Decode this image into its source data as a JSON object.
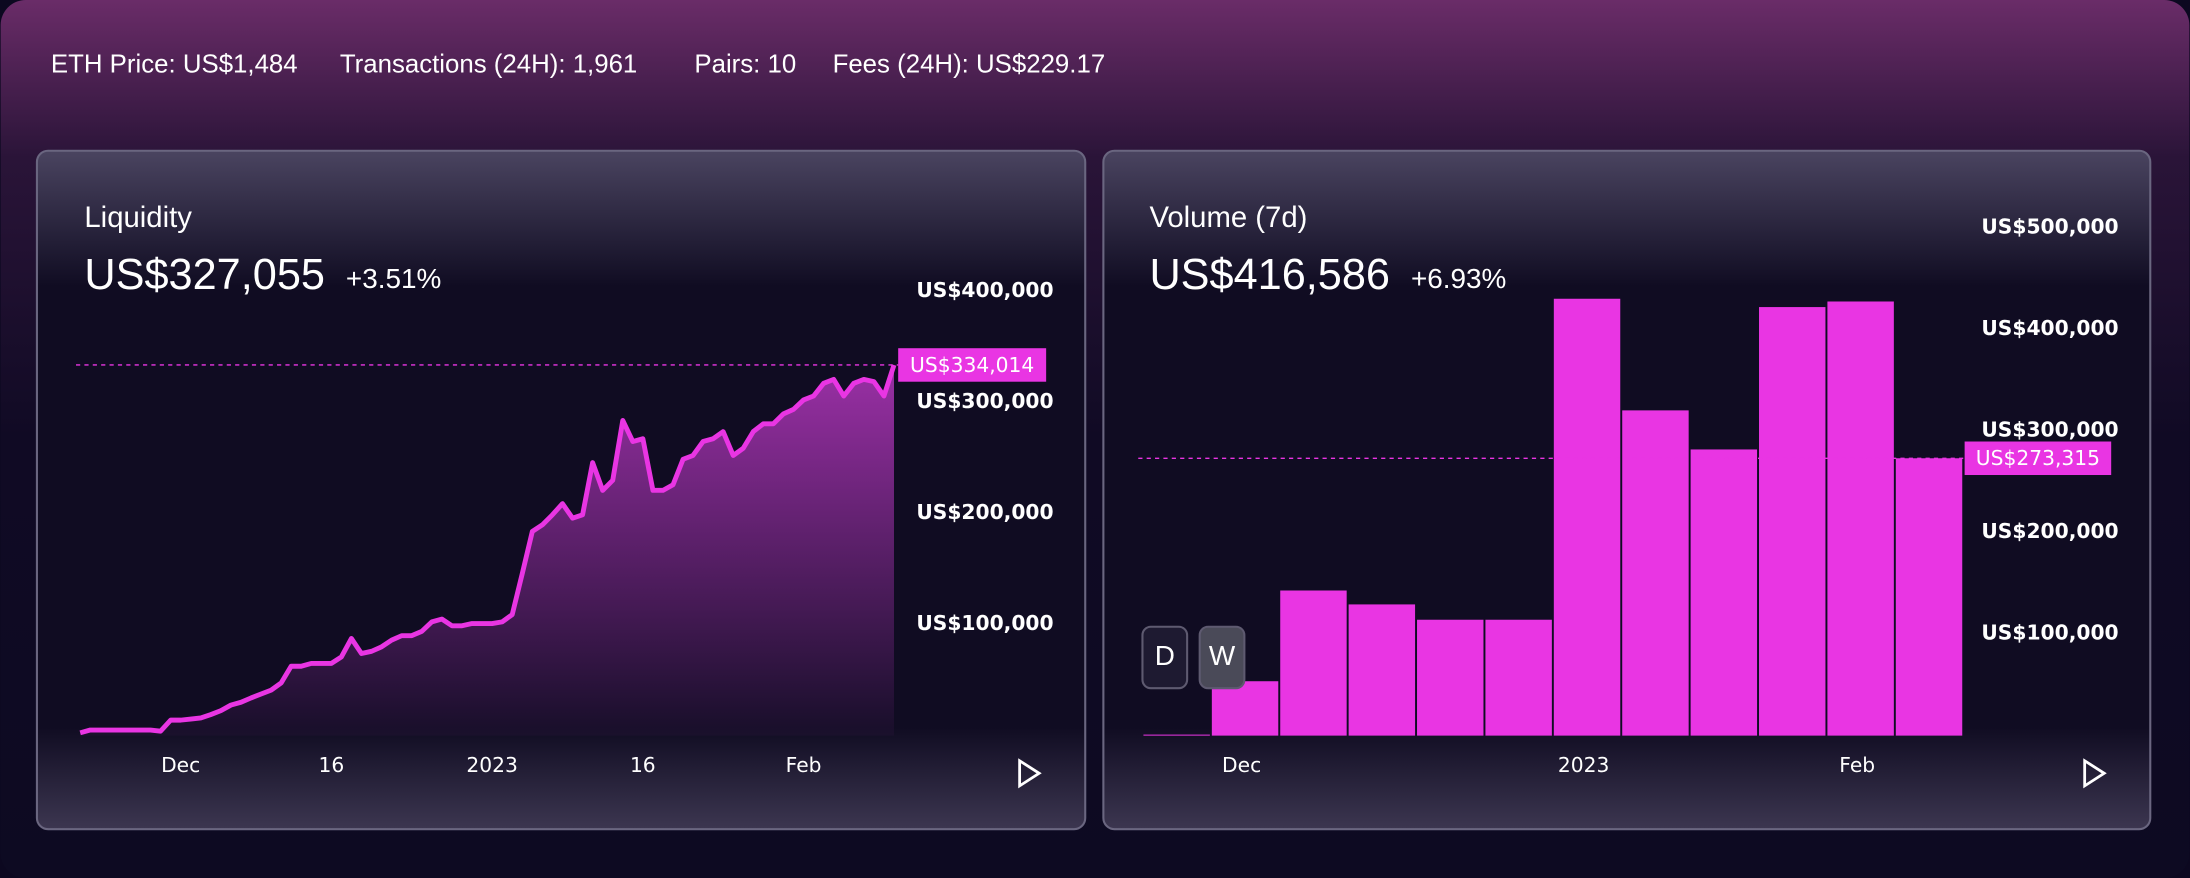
{
  "header": {
    "stats": [
      "ETH Price: US$1,484",
      "Transactions (24H): 1,961",
      "Pairs: 10",
      "Fees (24H): US$229.17"
    ]
  },
  "controls": [
    "D",
    "W"
  ],
  "chart_data": [
    {
      "type": "area",
      "title": "Liquidity",
      "headline": "US$327,055",
      "change": "+3.51%",
      "color": "#e935e3",
      "x": [
        0,
        1,
        2,
        3,
        4,
        5,
        6,
        7,
        8,
        9,
        10,
        11,
        12,
        13,
        14,
        15,
        16,
        17,
        18,
        19,
        20,
        21,
        22,
        23,
        24,
        25,
        26,
        27,
        28,
        29,
        30,
        31,
        32,
        33,
        34,
        35,
        36,
        37,
        38,
        39,
        40,
        41,
        42,
        43,
        44,
        45,
        46,
        47,
        48,
        49,
        50,
        51,
        52,
        53,
        54,
        55,
        56,
        57,
        58,
        59,
        60,
        61,
        62,
        63,
        64,
        65,
        66,
        67,
        68,
        69,
        70,
        71,
        72,
        73,
        74,
        75,
        76,
        77,
        78,
        79,
        80,
        81
      ],
      "values": [
        2500,
        5000,
        5000,
        5000,
        5000,
        5000,
        5000,
        5000,
        4000,
        14000,
        14000,
        15000,
        16000,
        19000,
        22500,
        27500,
        30000,
        34000,
        37500,
        41000,
        47500,
        62500,
        62500,
        65000,
        65000,
        65000,
        71000,
        87500,
        74000,
        76000,
        80000,
        86000,
        90000,
        90000,
        94000,
        102500,
        105000,
        99000,
        99000,
        101000,
        101000,
        101000,
        102500,
        109000,
        146000,
        184000,
        190000,
        199000,
        209000,
        196000,
        199000,
        246000,
        221000,
        230000,
        284000,
        265000,
        267500,
        221000,
        221000,
        226000,
        249000,
        252500,
        265000,
        267500,
        274000,
        252500,
        259000,
        274000,
        281000,
        281000,
        290000,
        294000,
        302500,
        306000,
        317500,
        321000,
        306000,
        317500,
        321000,
        319000,
        306000,
        334014
      ],
      "xlim": [
        0,
        81
      ],
      "xticks": [
        {
          "value": 10,
          "label": "Dec"
        },
        {
          "value": 25,
          "label": "16"
        },
        {
          "value": 41,
          "label": "2023"
        },
        {
          "value": 56,
          "label": "16"
        },
        {
          "value": 72,
          "label": "Feb"
        }
      ],
      "ylim": [
        0,
        400000
      ],
      "yticks": [
        {
          "value": 100000,
          "label": "US$100,000"
        },
        {
          "value": 200000,
          "label": "US$200,000"
        },
        {
          "value": 300000,
          "label": "US$300,000"
        },
        {
          "value": 400000,
          "label": "US$400,000"
        }
      ],
      "marker": {
        "value": 334014,
        "label": "US$334,014"
      }
    },
    {
      "type": "bar",
      "title": "Volume (7d)",
      "headline": "US$416,586",
      "change": "+6.93%",
      "color": "#e935e3",
      "x": [
        0,
        1,
        2,
        3,
        4,
        5,
        6,
        7,
        8,
        9,
        10,
        11
      ],
      "values": [
        1000,
        53600,
        143000,
        129300,
        114200,
        114200,
        430500,
        320500,
        282000,
        422300,
        427800,
        273315
      ],
      "xlim": [
        0,
        12
      ],
      "xticks": [
        {
          "value": 1.45,
          "label": "Dec"
        },
        {
          "value": 6.45,
          "label": "2023"
        },
        {
          "value": 10.45,
          "label": "Feb"
        }
      ],
      "ylim": [
        0,
        500000
      ],
      "yticks": [
        {
          "value": 100000,
          "label": "US$100,000"
        },
        {
          "value": 200000,
          "label": "US$200,000"
        },
        {
          "value": 300000,
          "label": "US$300,000"
        },
        {
          "value": 400000,
          "label": "US$400,000"
        },
        {
          "value": 500000,
          "label": "US$500,000"
        }
      ],
      "marker": {
        "value": 273315,
        "label": "US$273,315"
      }
    }
  ]
}
